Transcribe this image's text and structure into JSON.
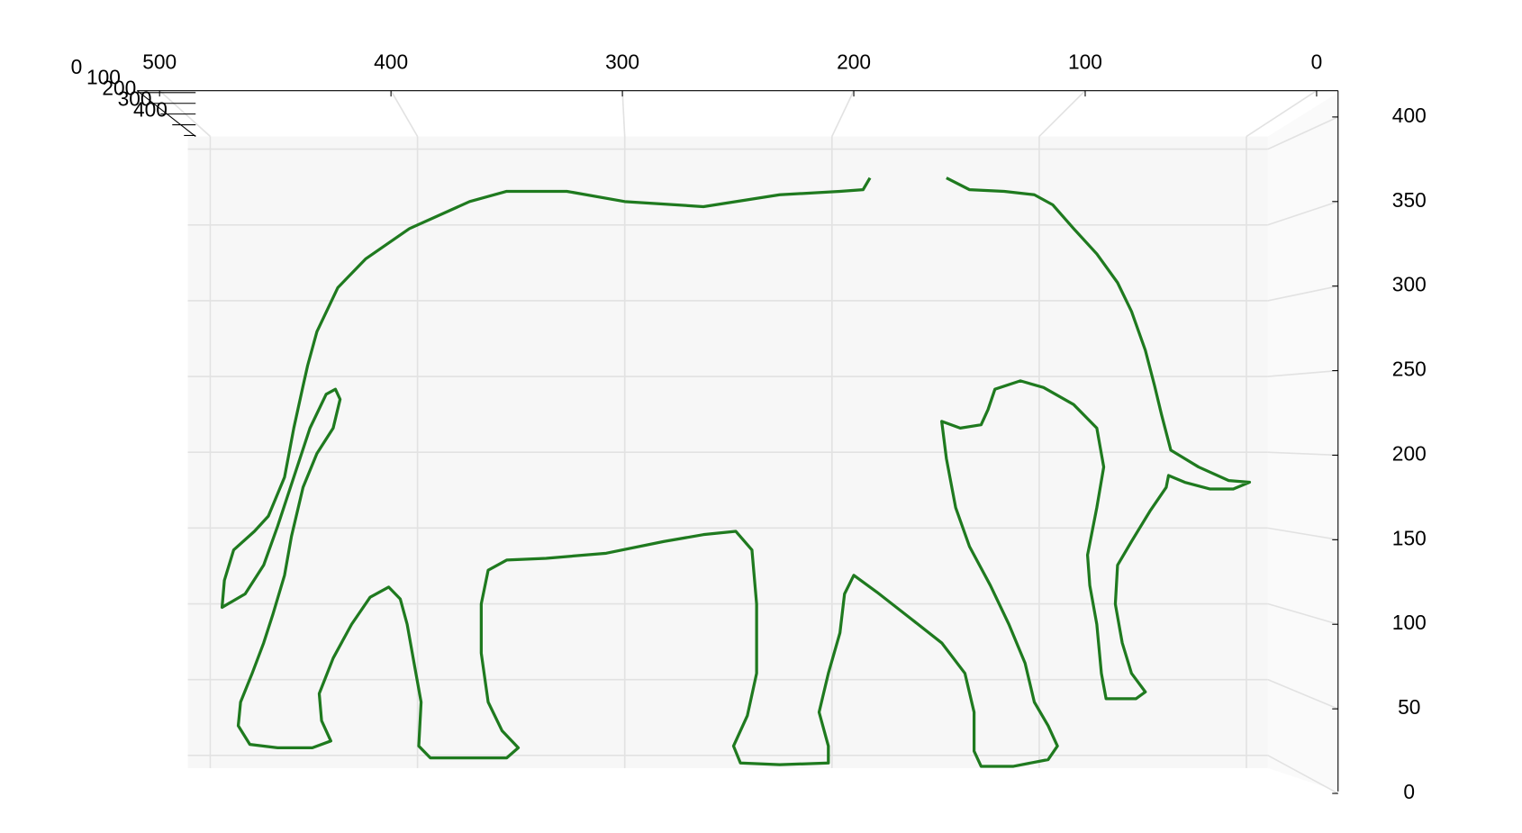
{
  "chart_data": {
    "type": "line3d",
    "xlim": [
      0,
      500
    ],
    "xticks": [
      0,
      100,
      200,
      300,
      400,
      500
    ],
    "ylim": [
      0,
      400
    ],
    "yticks": [
      0,
      50,
      100,
      150,
      200,
      250,
      300,
      350,
      400
    ],
    "zticks": [
      0,
      100,
      200,
      300,
      400
    ],
    "grid": true,
    "series": [
      {
        "color": "#1f7a1f",
        "x": [
          160,
          150,
          135,
          122,
          114,
          105,
          95,
          86,
          80,
          74,
          70,
          67,
          63,
          51,
          38,
          29,
          36,
          46,
          57,
          64,
          65,
          72,
          80,
          86,
          87,
          84,
          80,
          74,
          78,
          91,
          93,
          95,
          98,
          99,
          95,
          92,
          95,
          105,
          118,
          128,
          139,
          142,
          145,
          154,
          162,
          160,
          156,
          150,
          141,
          133,
          126,
          122,
          116,
          112,
          116,
          131,
          145,
          148,
          148,
          152,
          162,
          175,
          190,
          200,
          204,
          206,
          211,
          215,
          211,
          211,
          232,
          249,
          252,
          246,
          242,
          242,
          244,
          251,
          265,
          282,
          307,
          333,
          350,
          358,
          361,
          361,
          358,
          352,
          345,
          350,
          366,
          383,
          388,
          387,
          390,
          393,
          396,
          401,
          409,
          417,
          425,
          431,
          430,
          426,
          434,
          449,
          461,
          466,
          465,
          460,
          455,
          451,
          446,
          443,
          438,
          432,
          425,
          422,
          424,
          428,
          435,
          442,
          449,
          455,
          463,
          473,
          472,
          468,
          459,
          453,
          446,
          442,
          438,
          436,
          432,
          423,
          411,
          392,
          366,
          350,
          324,
          299,
          265,
          232,
          206,
          196,
          193
        ],
        "values": [
          364,
          357,
          356,
          354,
          348,
          334,
          319,
          302,
          285,
          262,
          241,
          224,
          203,
          193,
          185,
          184,
          180,
          180,
          184,
          188,
          181,
          167,
          149,
          135,
          112,
          89,
          71,
          60,
          56,
          56,
          71,
          100,
          123,
          141,
          169,
          193,
          216,
          230,
          240,
          244,
          239,
          227,
          218,
          216,
          220,
          198,
          169,
          146,
          123,
          100,
          77,
          54,
          40,
          28,
          20,
          16,
          16,
          25,
          48,
          71,
          89,
          103,
          119,
          129,
          118,
          95,
          71,
          48,
          28,
          18,
          17,
          18,
          28,
          46,
          71,
          112,
          144,
          155,
          153,
          149,
          142,
          139,
          138,
          132,
          112,
          83,
          54,
          37,
          27,
          21,
          21,
          21,
          28,
          54,
          77,
          100,
          115,
          122,
          116,
          100,
          80,
          59,
          43,
          31,
          27,
          27,
          29,
          40,
          54,
          71,
          89,
          106,
          129,
          152,
          181,
          201,
          216,
          233,
          239,
          236,
          216,
          187,
          158,
          135,
          118,
          110,
          126,
          144,
          155,
          164,
          187,
          216,
          241,
          253,
          273,
          299,
          316,
          334,
          350,
          356,
          356,
          350,
          347,
          354,
          356,
          357,
          364
        ]
      }
    ]
  }
}
